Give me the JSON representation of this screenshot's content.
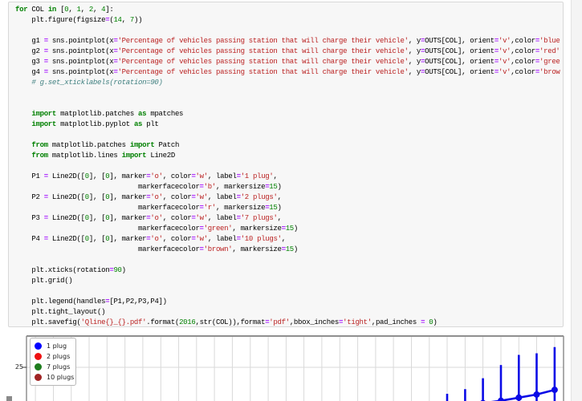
{
  "syntax_colors": {
    "k": "#008000",
    "o": "#AA22FF",
    "s": "#BA2121",
    "n": "#008000",
    "c": "#408080",
    "t": "#000000"
  },
  "cell": {
    "code_lines": [
      [
        [
          "k",
          "for"
        ],
        [
          "t",
          " COL "
        ],
        [
          "k",
          "in"
        ],
        [
          "t",
          " ["
        ],
        [
          "n",
          "0"
        ],
        [
          "t",
          ", "
        ],
        [
          "n",
          "1"
        ],
        [
          "t",
          ", "
        ],
        [
          "n",
          "2"
        ],
        [
          "t",
          ", "
        ],
        [
          "n",
          "4"
        ],
        [
          "t",
          "]:"
        ]
      ],
      [
        [
          "t",
          "    plt.figure(figsize"
        ],
        [
          "o",
          "="
        ],
        [
          "t",
          "("
        ],
        [
          "n",
          "14"
        ],
        [
          "t",
          ", "
        ],
        [
          "n",
          "7"
        ],
        [
          "t",
          "))"
        ]
      ],
      [],
      [
        [
          "t",
          "    g1 "
        ],
        [
          "o",
          "="
        ],
        [
          "t",
          " sns.pointplot(x"
        ],
        [
          "o",
          "="
        ],
        [
          "s",
          "'Percentage of vehicles passing station that will charge their vehicle'"
        ],
        [
          "t",
          ", y"
        ],
        [
          "o",
          "="
        ],
        [
          "t",
          "OUTS[COL], orient"
        ],
        [
          "o",
          "="
        ],
        [
          "s",
          "'v'"
        ],
        [
          "t",
          ",color"
        ],
        [
          "o",
          "="
        ],
        [
          "s",
          "'blue"
        ]
      ],
      [
        [
          "t",
          "    g2 "
        ],
        [
          "o",
          "="
        ],
        [
          "t",
          " sns.pointplot(x"
        ],
        [
          "o",
          "="
        ],
        [
          "s",
          "'Percentage of vehicles passing station that will charge their vehicle'"
        ],
        [
          "t",
          ", y"
        ],
        [
          "o",
          "="
        ],
        [
          "t",
          "OUTS[COL], orient"
        ],
        [
          "o",
          "="
        ],
        [
          "s",
          "'v'"
        ],
        [
          "t",
          ",color"
        ],
        [
          "o",
          "="
        ],
        [
          "s",
          "'red'"
        ]
      ],
      [
        [
          "t",
          "    g3 "
        ],
        [
          "o",
          "="
        ],
        [
          "t",
          " sns.pointplot(x"
        ],
        [
          "o",
          "="
        ],
        [
          "s",
          "'Percentage of vehicles passing station that will charge their vehicle'"
        ],
        [
          "t",
          ", y"
        ],
        [
          "o",
          "="
        ],
        [
          "t",
          "OUTS[COL], orient"
        ],
        [
          "o",
          "="
        ],
        [
          "s",
          "'v'"
        ],
        [
          "t",
          ",color"
        ],
        [
          "o",
          "="
        ],
        [
          "s",
          "'gree"
        ]
      ],
      [
        [
          "t",
          "    g4 "
        ],
        [
          "o",
          "="
        ],
        [
          "t",
          " sns.pointplot(x"
        ],
        [
          "o",
          "="
        ],
        [
          "s",
          "'Percentage of vehicles passing station that will charge their vehicle'"
        ],
        [
          "t",
          ", y"
        ],
        [
          "o",
          "="
        ],
        [
          "t",
          "OUTS[COL], orient"
        ],
        [
          "o",
          "="
        ],
        [
          "s",
          "'v'"
        ],
        [
          "t",
          ",color"
        ],
        [
          "o",
          "="
        ],
        [
          "s",
          "'brow"
        ]
      ],
      [
        [
          "t",
          "    "
        ],
        [
          "c",
          "# g.set_xticklabels(rotation=90)"
        ]
      ],
      [],
      [],
      [
        [
          "t",
          "    "
        ],
        [
          "k",
          "import"
        ],
        [
          "t",
          " matplotlib.patches "
        ],
        [
          "k",
          "as"
        ],
        [
          "t",
          " mpatches"
        ]
      ],
      [
        [
          "t",
          "    "
        ],
        [
          "k",
          "import"
        ],
        [
          "t",
          " matplotlib.pyplot "
        ],
        [
          "k",
          "as"
        ],
        [
          "t",
          " plt"
        ]
      ],
      [],
      [
        [
          "t",
          "    "
        ],
        [
          "k",
          "from"
        ],
        [
          "t",
          " matplotlib.patches "
        ],
        [
          "k",
          "import"
        ],
        [
          "t",
          " Patch"
        ]
      ],
      [
        [
          "t",
          "    "
        ],
        [
          "k",
          "from"
        ],
        [
          "t",
          " matplotlib.lines "
        ],
        [
          "k",
          "import"
        ],
        [
          "t",
          " Line2D"
        ]
      ],
      [],
      [
        [
          "t",
          "    P1 "
        ],
        [
          "o",
          "="
        ],
        [
          "t",
          " Line2D(["
        ],
        [
          "n",
          "0"
        ],
        [
          "t",
          "], ["
        ],
        [
          "n",
          "0"
        ],
        [
          "t",
          "], marker"
        ],
        [
          "o",
          "="
        ],
        [
          "s",
          "'o'"
        ],
        [
          "t",
          ", color"
        ],
        [
          "o",
          "="
        ],
        [
          "s",
          "'w'"
        ],
        [
          "t",
          ", label"
        ],
        [
          "o",
          "="
        ],
        [
          "s",
          "'1 plug'"
        ],
        [
          "t",
          ","
        ]
      ],
      [
        [
          "t",
          "                              markerfacecolor"
        ],
        [
          "o",
          "="
        ],
        [
          "s",
          "'b'"
        ],
        [
          "t",
          ", markersize"
        ],
        [
          "o",
          "="
        ],
        [
          "n",
          "15"
        ],
        [
          "t",
          ")"
        ]
      ],
      [
        [
          "t",
          "    P2 "
        ],
        [
          "o",
          "="
        ],
        [
          "t",
          " Line2D(["
        ],
        [
          "n",
          "0"
        ],
        [
          "t",
          "], ["
        ],
        [
          "n",
          "0"
        ],
        [
          "t",
          "], marker"
        ],
        [
          "o",
          "="
        ],
        [
          "s",
          "'o'"
        ],
        [
          "t",
          ", color"
        ],
        [
          "o",
          "="
        ],
        [
          "s",
          "'w'"
        ],
        [
          "t",
          ", label"
        ],
        [
          "o",
          "="
        ],
        [
          "s",
          "'2 plugs'"
        ],
        [
          "t",
          ","
        ]
      ],
      [
        [
          "t",
          "                              markerfacecolor"
        ],
        [
          "o",
          "="
        ],
        [
          "s",
          "'r'"
        ],
        [
          "t",
          ", markersize"
        ],
        [
          "o",
          "="
        ],
        [
          "n",
          "15"
        ],
        [
          "t",
          ")"
        ]
      ],
      [
        [
          "t",
          "    P3 "
        ],
        [
          "o",
          "="
        ],
        [
          "t",
          " Line2D(["
        ],
        [
          "n",
          "0"
        ],
        [
          "t",
          "], ["
        ],
        [
          "n",
          "0"
        ],
        [
          "t",
          "], marker"
        ],
        [
          "o",
          "="
        ],
        [
          "s",
          "'o'"
        ],
        [
          "t",
          ", color"
        ],
        [
          "o",
          "="
        ],
        [
          "s",
          "'w'"
        ],
        [
          "t",
          ", label"
        ],
        [
          "o",
          "="
        ],
        [
          "s",
          "'7 plugs'"
        ],
        [
          "t",
          ","
        ]
      ],
      [
        [
          "t",
          "                              markerfacecolor"
        ],
        [
          "o",
          "="
        ],
        [
          "s",
          "'green'"
        ],
        [
          "t",
          ", markersize"
        ],
        [
          "o",
          "="
        ],
        [
          "n",
          "15"
        ],
        [
          "t",
          ")"
        ]
      ],
      [
        [
          "t",
          "    P4 "
        ],
        [
          "o",
          "="
        ],
        [
          "t",
          " Line2D(["
        ],
        [
          "n",
          "0"
        ],
        [
          "t",
          "], ["
        ],
        [
          "n",
          "0"
        ],
        [
          "t",
          "], marker"
        ],
        [
          "o",
          "="
        ],
        [
          "s",
          "'o'"
        ],
        [
          "t",
          ", color"
        ],
        [
          "o",
          "="
        ],
        [
          "s",
          "'w'"
        ],
        [
          "t",
          ", label"
        ],
        [
          "o",
          "="
        ],
        [
          "s",
          "'10 plugs'"
        ],
        [
          "t",
          ","
        ]
      ],
      [
        [
          "t",
          "                              markerfacecolor"
        ],
        [
          "o",
          "="
        ],
        [
          "s",
          "'brown'"
        ],
        [
          "t",
          ", markersize"
        ],
        [
          "o",
          "="
        ],
        [
          "n",
          "15"
        ],
        [
          "t",
          ")"
        ]
      ],
      [],
      [
        [
          "t",
          "    plt.xticks(rotation"
        ],
        [
          "o",
          "="
        ],
        [
          "n",
          "90"
        ],
        [
          "t",
          ")"
        ]
      ],
      [
        [
          "t",
          "    plt.grid()"
        ]
      ],
      [],
      [
        [
          "t",
          "    plt.legend(handles"
        ],
        [
          "o",
          "="
        ],
        [
          "t",
          "[P1,P2,P3,P4])"
        ]
      ],
      [
        [
          "t",
          "    plt.tight_layout()"
        ]
      ],
      [
        [
          "t",
          "    plt.savefig("
        ],
        [
          "s",
          "'Qline{}_{}.pdf'"
        ],
        [
          "t",
          ".format("
        ],
        [
          "n",
          "2016"
        ],
        [
          "t",
          ",str(COL)),format"
        ],
        [
          "o",
          "="
        ],
        [
          "s",
          "'pdf'"
        ],
        [
          "t",
          ",bbox_inches"
        ],
        [
          "o",
          "="
        ],
        [
          "s",
          "'tight'"
        ],
        [
          "t",
          ",pad_inches "
        ],
        [
          "o",
          "="
        ],
        [
          "t",
          " "
        ],
        [
          "n",
          "0"
        ],
        [
          "t",
          ")"
        ]
      ]
    ]
  },
  "chart_data": {
    "type": "pointplot",
    "grid": true,
    "y_tick_label": "25",
    "y_ticks_visible": [
      25
    ],
    "n_categories_est": 30,
    "legend_position": "upper left",
    "legend_entries": [
      {
        "label": "1 plug",
        "color": "#0000FF"
      },
      {
        "label": "2 plugs",
        "color": "#EE1111"
      },
      {
        "label": "7 plugs",
        "color": "#1E7D1E"
      },
      {
        "label": "10 plugs",
        "color": "#A02424"
      }
    ],
    "series": [
      {
        "name": "1 plug (blue)",
        "color": "#0A0AE6",
        "visible_points": [
          {
            "cat_index": 23,
            "mean_est": 22.4,
            "ci_high_est": 23.3
          },
          {
            "cat_index": 24,
            "mean_est": 22.55,
            "ci_high_est": 23.6
          },
          {
            "cat_index": 25,
            "mean_est": 22.7,
            "ci_high_est": 24.3
          },
          {
            "cat_index": 26,
            "mean_est": 22.85,
            "ci_high_est": 25.15
          },
          {
            "cat_index": 27,
            "mean_est": 23.05,
            "ci_high_est": 25.8
          },
          {
            "cat_index": 28,
            "mean_est": 23.25,
            "ci_high_est": 25.9
          },
          {
            "cat_index": 29,
            "mean_est": 23.55,
            "ci_high_est": 26.3
          }
        ],
        "note_visible_region": "figure cropped at viewport bottom; lower CI whiskers and earlier categories cut off"
      }
    ]
  }
}
